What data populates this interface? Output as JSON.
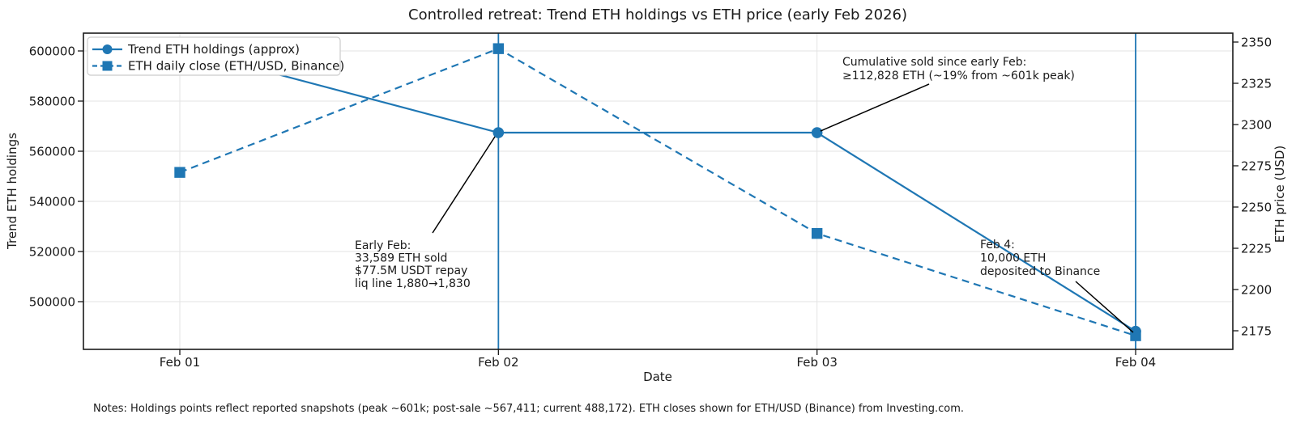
{
  "chart_data": {
    "type": "line",
    "title": "Controlled retreat: Trend ETH holdings vs ETH price (early Feb 2026)",
    "xlabel": "Date",
    "categories": [
      "Feb 01",
      "Feb 02",
      "Feb 03",
      "Feb 04"
    ],
    "left_axis": {
      "label": "Trend ETH holdings",
      "ticks": [
        600000,
        580000,
        560000,
        540000,
        520000,
        500000
      ],
      "range_approx": [
        481000,
        607000
      ]
    },
    "right_axis": {
      "label": "ETH price (USD)",
      "ticks": [
        2350,
        2325,
        2300,
        2275,
        2250,
        2225,
        2200,
        2175
      ],
      "range_approx": [
        2164,
        2355
      ]
    },
    "series": [
      {
        "name": "Trend ETH holdings (approx)",
        "axis": "left",
        "line_style": "solid",
        "marker": "circle",
        "color": "#1f77b4",
        "values": [
          601000,
          567411,
          567411,
          488172
        ]
      },
      {
        "name": "ETH daily close (ETH/USD, Binance)",
        "axis": "right",
        "line_style": "dashed",
        "marker": "square",
        "color": "#1f77b4",
        "values": [
          2271,
          2346,
          2234,
          2172
        ]
      }
    ],
    "event_vlines": [
      "Feb 02",
      "Feb 04"
    ],
    "grid": true,
    "legend_position": "upper left",
    "annotations": [
      {
        "id": "cumulative-sold",
        "target_category": "Feb 03",
        "target_series": "Trend ETH holdings (approx)",
        "lines": [
          "Cumulative sold since early Feb:",
          "≥112,828 ETH (~19% from ~601k peak)"
        ]
      },
      {
        "id": "early-feb-sale",
        "target_category": "Feb 02",
        "target_series": "Trend ETH holdings (approx)",
        "lines": [
          "Early Feb:",
          "33,589 ETH sold",
          "$77.5M USDT repay",
          "liq line 1,880→1,830"
        ]
      },
      {
        "id": "feb4-deposit",
        "target_category": "Feb 04",
        "target_series": "Trend ETH holdings (approx)",
        "lines": [
          "Feb 4:",
          "10,000 ETH",
          "deposited to Binance"
        ]
      }
    ],
    "notes": "Notes: Holdings points reflect reported snapshots (peak ~601k; post-sale ~567,411; current 488,172). ETH closes shown for ETH/USD (Binance) from Investing.com."
  },
  "colors": {
    "series_blue": "#1f77b4",
    "grid": "#e3e3e3",
    "spine": "#1a1a1a",
    "annotation_line": "#000000",
    "legend_border": "#cccccc",
    "background": "#ffffff"
  }
}
